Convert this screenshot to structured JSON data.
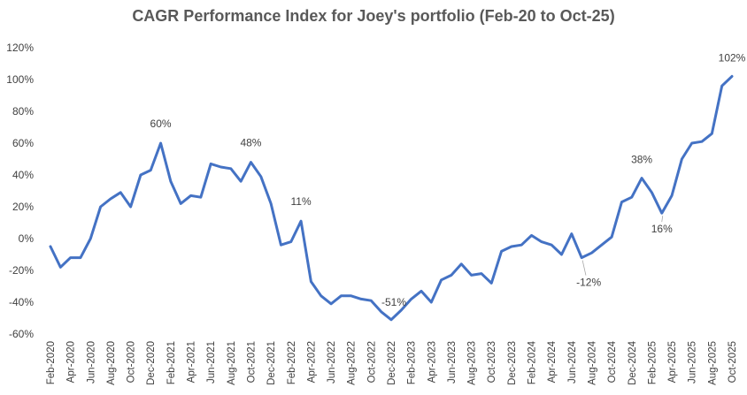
{
  "chart_data": {
    "type": "line",
    "title": "CAGR Performance Index for Joey's portfolio (Feb-20 to Oct-25)",
    "xlabel": "",
    "ylabel": "",
    "ylim": [
      -60,
      120
    ],
    "y_ticks": [
      -60,
      -40,
      -20,
      0,
      20,
      40,
      60,
      80,
      100,
      120
    ],
    "y_tick_labels": [
      "-60%",
      "-40%",
      "-20%",
      "0%",
      "20%",
      "40%",
      "60%",
      "80%",
      "100%",
      "120%"
    ],
    "grid": false,
    "legend": "none",
    "line_color": "#4472C4",
    "x": [
      "Feb-2020",
      "Mar-2020",
      "Apr-2020",
      "May-2020",
      "Jun-2020",
      "Jul-2020",
      "Aug-2020",
      "Sep-2020",
      "Oct-2020",
      "Nov-2020",
      "Dec-2020",
      "Jan-2021",
      "Feb-2021",
      "Mar-2021",
      "Apr-2021",
      "May-2021",
      "Jun-2021",
      "Jul-2021",
      "Aug-2021",
      "Sep-2021",
      "Oct-2021",
      "Nov-2021",
      "Dec-2021",
      "Jan-2022",
      "Feb-2022",
      "Mar-2022",
      "Apr-2022",
      "May-2022",
      "Jun-2022",
      "Jul-2022",
      "Aug-2022",
      "Sep-2022",
      "Oct-2022",
      "Nov-2022",
      "Dec-2022",
      "Jan-2023",
      "Feb-2023",
      "Mar-2023",
      "Apr-2023",
      "May-2023",
      "Jun-2023",
      "Jul-2023",
      "Aug-2023",
      "Sep-2023",
      "Oct-2023",
      "Nov-2023",
      "Dec-2023",
      "Jan-2024",
      "Feb-2024",
      "Mar-2024",
      "Apr-2024",
      "May-2024",
      "Jun-2024",
      "Jul-2024",
      "Aug-2024",
      "Sep-2024",
      "Oct-2024",
      "Nov-2024",
      "Dec-2024",
      "Jan-2025",
      "Feb-2025",
      "Mar-2025",
      "Apr-2025",
      "May-2025",
      "Jun-2025",
      "Jul-2025",
      "Aug-2025",
      "Sep-2025",
      "Oct-2025"
    ],
    "x_tick_labels": [
      "Feb-2020",
      "Apr-2020",
      "Jun-2020",
      "Aug-2020",
      "Oct-2020",
      "Dec-2020",
      "Feb-2021",
      "Apr-2021",
      "Jun-2021",
      "Aug-2021",
      "Oct-2021",
      "Dec-2021",
      "Feb-2022",
      "Apr-2022",
      "Jun-2022",
      "Aug-2022",
      "Oct-2022",
      "Dec-2022",
      "Feb-2023",
      "Apr-2023",
      "Jun-2023",
      "Aug-2023",
      "Oct-2023",
      "Dec-2023",
      "Feb-2024",
      "Apr-2024",
      "Jun-2024",
      "Aug-2024",
      "Oct-2024",
      "Dec-2024",
      "Feb-2025",
      "Apr-2025",
      "Jun-2025",
      "Aug-2025",
      "Oct-2025"
    ],
    "series": [
      {
        "name": "CAGR Performance Index",
        "values": [
          -5,
          -18,
          -12,
          -12,
          0,
          20,
          25,
          29,
          20,
          40,
          43,
          60,
          36,
          22,
          27,
          26,
          47,
          45,
          44,
          36,
          48,
          39,
          22,
          -4,
          -2,
          11,
          -27,
          -36,
          -41,
          -36,
          -36,
          -38,
          -39,
          -46,
          -51,
          -45,
          -38,
          -33,
          -40,
          -26,
          -23,
          -16,
          -23,
          -22,
          -28,
          -8,
          -5,
          -4,
          2,
          -2,
          -4,
          -10,
          3,
          -12,
          -9,
          -4,
          1,
          23,
          26,
          38,
          29,
          16,
          27,
          50,
          60,
          61,
          66,
          96,
          102
        ]
      }
    ],
    "annotations": [
      {
        "index": 11,
        "label": "60%"
      },
      {
        "index": 20,
        "label": "48%"
      },
      {
        "index": 25,
        "label": "11%"
      },
      {
        "index": 34,
        "label": "-51%"
      },
      {
        "index": 53,
        "label": "-12%"
      },
      {
        "index": 59,
        "label": "38%"
      },
      {
        "index": 61,
        "label": "16%"
      },
      {
        "index": 68,
        "label": "102%"
      }
    ]
  }
}
